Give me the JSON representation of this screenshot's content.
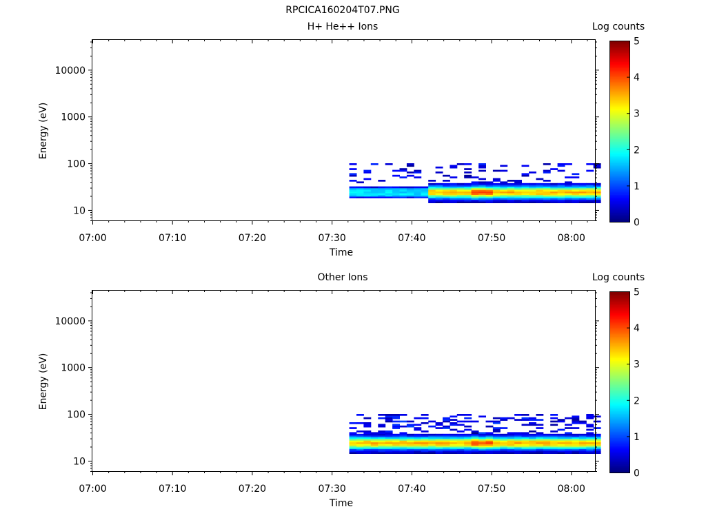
{
  "page_title": "RPCICA160204T07.PNG",
  "chart_data": [
    {
      "type": "heatmap",
      "title": "H+ He++ Ions",
      "xlabel": "Time",
      "ylabel": "Energy (eV)",
      "colorbar_label": "Log counts",
      "x_ticks": [
        "07:00",
        "07:10",
        "07:20",
        "07:30",
        "07:40",
        "07:50",
        "08:00"
      ],
      "xlim_minutes": [
        0,
        63
      ],
      "y_scale": "log",
      "y_ticks": [
        "10",
        "100",
        "1000",
        "10000"
      ],
      "ylim": [
        6,
        45000
      ],
      "colorbar_ticks": [
        "0",
        "1",
        "2",
        "3",
        "4",
        "5"
      ],
      "clim": [
        0,
        5
      ],
      "time_start": "07:00"
    },
    {
      "type": "heatmap",
      "title": "Other Ions",
      "xlabel": "Time",
      "ylabel": "Energy (eV)",
      "colorbar_label": "Log counts",
      "x_ticks": [
        "07:00",
        "07:10",
        "07:20",
        "07:30",
        "07:40",
        "07:50",
        "08:00"
      ],
      "xlim_minutes": [
        0,
        63
      ],
      "y_scale": "log",
      "y_ticks": [
        "10",
        "100",
        "1000",
        "10000"
      ],
      "ylim": [
        6,
        45000
      ],
      "colorbar_ticks": [
        "0",
        "1",
        "2",
        "3",
        "4",
        "5"
      ],
      "clim": [
        0,
        5
      ],
      "time_start": "07:00"
    }
  ]
}
